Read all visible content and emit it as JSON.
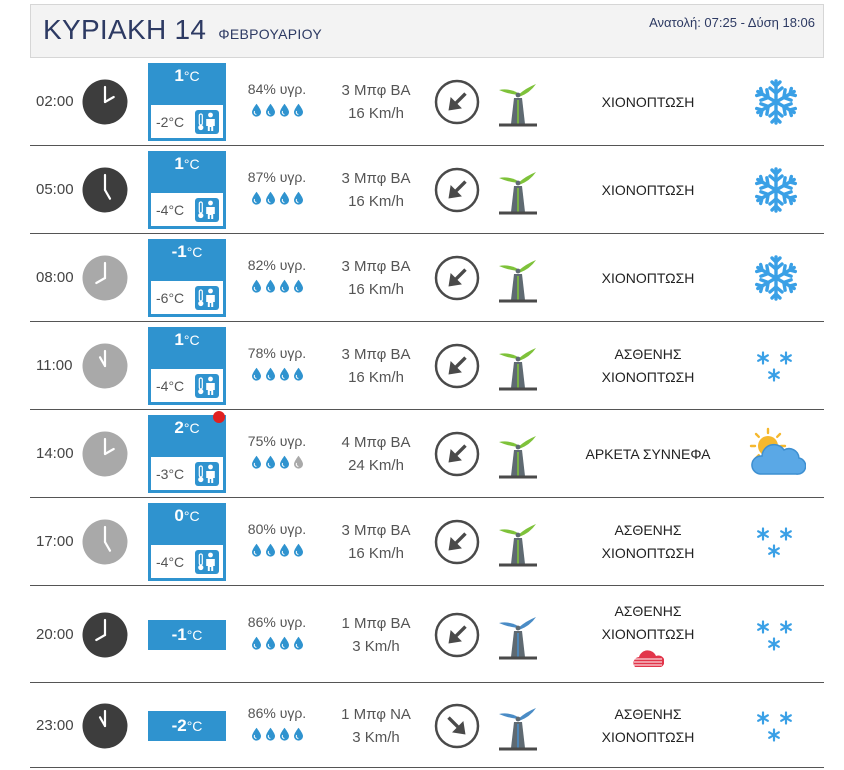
{
  "header": {
    "day": "ΚΥΡΙΑΚΗ 14",
    "month": "ΦΕΒΡΟΥΑΡΙΟΥ",
    "sun": "Ανατολή: 07:25  - Δύση 18:06"
  },
  "colors": {
    "accent": "#2f93cf",
    "clock_dark": "#3d3d3d",
    "clock_light": "#a9a9a9",
    "wind_green": "#7ec23a",
    "wind_blue": "#4a8cc6",
    "snow": "#3aa0e6"
  },
  "rows": [
    {
      "time": "02:00",
      "clock": "dark",
      "temp": "1",
      "deg": "°C",
      "feels": "-2°C",
      "alert": false,
      "humidity": "84% υγρ.",
      "drops": 4,
      "beaufort": "3 Μπφ ΒΑ",
      "speed": "16 Km/h",
      "direction": "ΒΑ",
      "turbine": "green",
      "cond1": "ΧΙΟΝΟΠΤΩΣΗ",
      "cond2": "",
      "icon": "snowflake-icon"
    },
    {
      "time": "05:00",
      "clock": "dark",
      "temp": "1",
      "deg": "°C",
      "feels": "-4°C",
      "alert": false,
      "humidity": "87% υγρ.",
      "drops": 4,
      "beaufort": "3 Μπφ ΒΑ",
      "speed": "16 Km/h",
      "direction": "ΒΑ",
      "turbine": "green",
      "cond1": "ΧΙΟΝΟΠΤΩΣΗ",
      "cond2": "",
      "icon": "snowflake-icon"
    },
    {
      "time": "08:00",
      "clock": "light",
      "temp": "-1",
      "deg": "°C",
      "feels": "-6°C",
      "alert": false,
      "humidity": "82% υγρ.",
      "drops": 4,
      "beaufort": "3 Μπφ ΒΑ",
      "speed": "16 Km/h",
      "direction": "ΒΑ",
      "turbine": "green",
      "cond1": "ΧΙΟΝΟΠΤΩΣΗ",
      "cond2": "",
      "icon": "snowflake-icon"
    },
    {
      "time": "11:00",
      "clock": "light",
      "temp": "1",
      "deg": "°C",
      "feels": "-4°C",
      "alert": false,
      "humidity": "78% υγρ.",
      "drops": 4,
      "beaufort": "3 Μπφ ΒΑ",
      "speed": "16 Km/h",
      "direction": "ΒΑ",
      "turbine": "green",
      "cond1": "ΑΣΘΕΝΗΣ",
      "cond2": "ΧΙΟΝΟΠΤΩΣΗ",
      "icon": "light-snow-icon"
    },
    {
      "time": "14:00",
      "clock": "light",
      "temp": "2",
      "deg": "°C",
      "feels": "-3°C",
      "alert": true,
      "humidity": "75% υγρ.",
      "drops": 3,
      "beaufort": "4 Μπφ ΒΑ",
      "speed": "24 Km/h",
      "direction": "ΒΑ",
      "turbine": "green",
      "cond1": "ΑΡΚΕΤΑ ΣΥΝΝΕΦΑ",
      "cond2": "",
      "icon": "partly-cloudy-icon"
    },
    {
      "time": "17:00",
      "clock": "light",
      "temp": "0",
      "deg": "°C",
      "feels": "-4°C",
      "alert": false,
      "humidity": "80% υγρ.",
      "drops": 4,
      "beaufort": "3 Μπφ ΒΑ",
      "speed": "16 Km/h",
      "direction": "ΒΑ",
      "turbine": "green",
      "cond1": "ΑΣΘΕΝΗΣ",
      "cond2": "ΧΙΟΝΟΠΤΩΣΗ",
      "icon": "light-snow-icon"
    },
    {
      "time": "20:00",
      "clock": "dark",
      "temp": "-1",
      "deg": "°C",
      "feels": "",
      "alert": false,
      "humidity": "86% υγρ.",
      "drops": 4,
      "beaufort": "1 Μπφ ΒΑ",
      "speed": "3 Km/h",
      "direction": "ΒΑ",
      "turbine": "blue",
      "cond1": "ΑΣΘΕΝΗΣ",
      "cond2": "ΧΙΟΝΟΠΤΩΣΗ",
      "mini": "haze-icon",
      "icon": "light-snow-icon"
    },
    {
      "time": "23:00",
      "clock": "dark",
      "temp": "-2",
      "deg": "°C",
      "feels": "",
      "alert": false,
      "humidity": "86% υγρ.",
      "drops": 4,
      "beaufort": "1 Μπφ ΝΑ",
      "speed": "3 Km/h",
      "direction": "ΝΑ",
      "turbine": "blue",
      "cond1": "ΑΣΘΕΝΗΣ",
      "cond2": "ΧΙΟΝΟΠΤΩΣΗ",
      "icon": "light-snow-icon"
    }
  ]
}
